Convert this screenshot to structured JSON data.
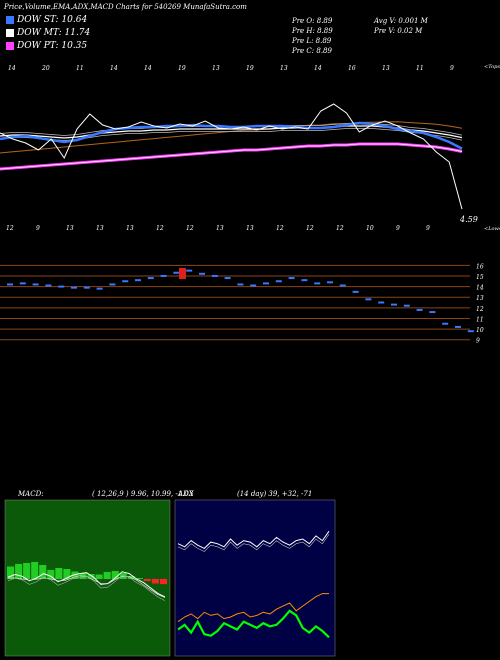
{
  "header": "Price,Volume,EMA,ADX,MACD Charts for 540269 MunafaSutra.com",
  "legend": [
    {
      "label": "DOW ST: 10.64",
      "color": "#3a78ff"
    },
    {
      "label": "DOW MT: 11.74",
      "color": "#ffffff"
    },
    {
      "label": "DOW PT: 10.35",
      "color": "#ff40ff"
    }
  ],
  "ohlc_left": [
    "Pre  O: 8.89",
    "Pre  H: 8.89",
    "Pre  L: 8.89",
    "Pre  C: 8.89"
  ],
  "ohlc_right": [
    "Avg V: 0.001 M",
    "Pre  V: 0.02  M"
  ],
  "top_label": "<Tops",
  "low_label": "<Lows",
  "last_price": "4.59",
  "tops_labels": [
    "14",
    "20",
    "11",
    "14",
    "14",
    "19",
    "13",
    "19",
    "13",
    "14",
    "16",
    "13",
    "11",
    "9"
  ],
  "lows_labels": [
    "12",
    "9",
    "13",
    "13",
    "13",
    "12",
    "12",
    "13",
    "13",
    "12",
    "12",
    "12",
    "10",
    "9",
    "9"
  ],
  "macd": {
    "title": "MACD:",
    "params": "( 12,26,9 ) 9.96,  10.99,  -1.03"
  },
  "adx": {
    "title": "ADX",
    "params": "(14  day) 39,  +32,  -71"
  },
  "colors": {
    "bg": "#000000",
    "ema_st": "#3a78ff",
    "ema_mt": "#ffffff",
    "ema_pt": "#ff40ff",
    "ema_brown": "#b5651d",
    "hline": "#8b4513",
    "macd_bg": "#0a5a0a",
    "adx_bg": "#000044",
    "adx_minus": "#ff8c00",
    "adx_plus": "#00ff00"
  },
  "chart_data": [
    {
      "type": "line",
      "title": "Price,Volume,EMA,ADX,MACD Charts for 540269 MunafaSutra.com",
      "series": [
        {
          "name": "DOW ST",
          "values": [
            11.6,
            11.8,
            11.9,
            11.7,
            11.5,
            11.3,
            11.5,
            11.9,
            12.3,
            12.6,
            12.7,
            12.8,
            12.8,
            12.9,
            12.9,
            13.0,
            12.9,
            12.9,
            12.8,
            12.8,
            12.9,
            12.9,
            12.9,
            12.8,
            12.7,
            12.7,
            12.8,
            13.0,
            13.2,
            13.1,
            12.9,
            12.6,
            12.4,
            12.2,
            11.8,
            11.3,
            10.64
          ]
        },
        {
          "name": "DOW MT",
          "values": [
            11.9,
            12.0,
            12.0,
            11.9,
            11.8,
            11.7,
            11.8,
            12.0,
            12.2,
            12.3,
            12.4,
            12.4,
            12.5,
            12.5,
            12.6,
            12.6,
            12.6,
            12.6,
            12.6,
            12.6,
            12.6,
            12.6,
            12.7,
            12.7,
            12.7,
            12.7,
            12.8,
            12.9,
            12.9,
            12.9,
            12.8,
            12.7,
            12.5,
            12.4,
            12.2,
            12.0,
            11.74
          ]
        },
        {
          "name": "DOW PT",
          "values": [
            8.6,
            8.7,
            8.8,
            8.9,
            9.0,
            9.1,
            9.2,
            9.3,
            9.4,
            9.5,
            9.6,
            9.7,
            9.8,
            9.9,
            10.0,
            10.1,
            10.2,
            10.3,
            10.4,
            10.5,
            10.5,
            10.6,
            10.7,
            10.8,
            10.9,
            10.9,
            11.0,
            11.0,
            11.1,
            11.1,
            11.1,
            11.1,
            11.0,
            10.9,
            10.8,
            10.6,
            10.35
          ]
        },
        {
          "name": "Price",
          "values": [
            12.2,
            11.6,
            11.2,
            10.5,
            11.6,
            9.7,
            12.6,
            14.1,
            13.0,
            12.6,
            12.8,
            13.3,
            12.9,
            12.7,
            13.1,
            12.9,
            13.4,
            12.7,
            12.6,
            12.8,
            12.5,
            12.9,
            12.6,
            12.8,
            12.6,
            14.4,
            15.1,
            14.2,
            12.3,
            13.0,
            13.4,
            12.9,
            12.2,
            11.6,
            10.3,
            9.3,
            4.59
          ]
        }
      ],
      "macd_histogram": [
        2.5,
        3.0,
        3.2,
        3.4,
        2.8,
        1.8,
        2.2,
        2.0,
        1.5,
        1.2,
        1.0,
        0.9,
        1.4,
        1.6,
        1.2,
        0.6,
        0.2,
        -0.4,
        -0.9,
        -1.03
      ],
      "adx_series": {
        "ADX": [
          0.72,
          0.7,
          0.74,
          0.71,
          0.69,
          0.73,
          0.72,
          0.7,
          0.75,
          0.71,
          0.74,
          0.73,
          0.7,
          0.74,
          0.72,
          0.76,
          0.73,
          0.71,
          0.74,
          0.75,
          0.72,
          0.77,
          0.74,
          0.8
        ],
        "+DI": [
          0.22,
          0.25,
          0.27,
          0.24,
          0.28,
          0.26,
          0.27,
          0.24,
          0.25,
          0.27,
          0.28,
          0.25,
          0.26,
          0.28,
          0.27,
          0.3,
          0.32,
          0.34,
          0.29,
          0.32,
          0.35,
          0.38,
          0.4,
          0.4
        ],
        "-DI": [
          0.17,
          0.2,
          0.15,
          0.22,
          0.14,
          0.13,
          0.16,
          0.21,
          0.19,
          0.17,
          0.22,
          0.2,
          0.18,
          0.21,
          0.19,
          0.2,
          0.24,
          0.29,
          0.26,
          0.18,
          0.15,
          0.19,
          0.16,
          0.12
        ]
      }
    }
  ]
}
